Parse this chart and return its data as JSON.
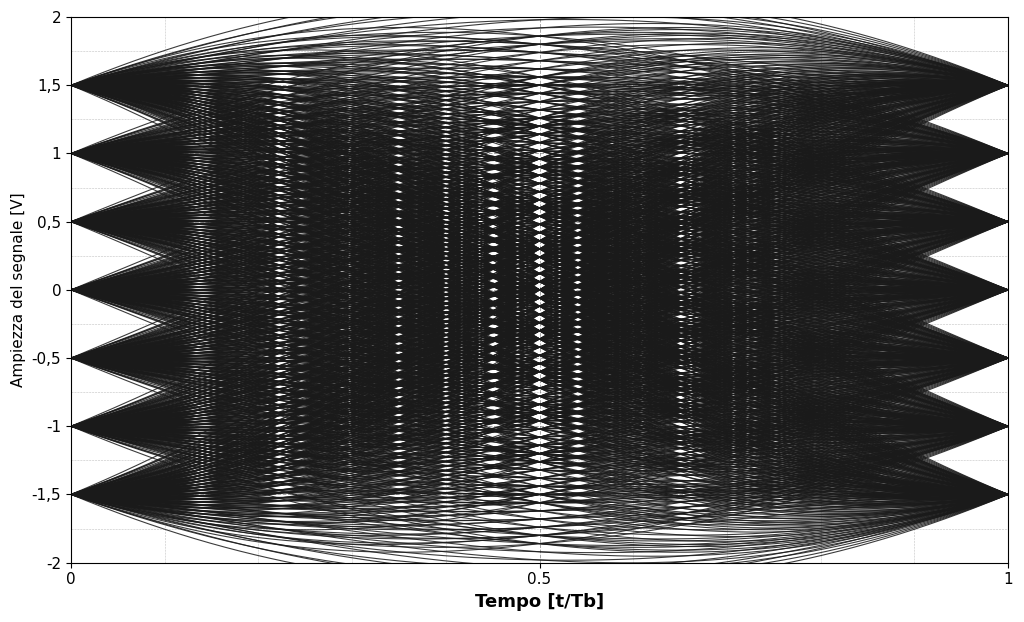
{
  "title": "",
  "xlabel": "Tempo [t/Tb]",
  "ylabel": "Ampiezza del segnale [V]",
  "xlim": [
    0,
    1
  ],
  "ylim": [
    -2,
    2
  ],
  "yticks": [
    -2,
    -1.5,
    -1,
    -0.5,
    0,
    0.5,
    1,
    1.5,
    2
  ],
  "xticks": [
    0,
    0.5,
    1
  ],
  "line_color": "#1a1a1a",
  "line_width": 0.8,
  "background_color": "#ffffff",
  "grid_color": "#000000",
  "grid_alpha": 0.35,
  "grid_linestyle": "--",
  "xlabel_fontsize": 13,
  "ylabel_fontsize": 11,
  "tick_fontsize": 11,
  "amplitude_levels": [
    -1.5,
    -1.0,
    -0.5,
    0.0,
    0.5,
    1.0,
    1.5
  ],
  "n_points": 500,
  "alpha": 0.85,
  "figsize": [
    10.24,
    6.22
  ],
  "dpi": 100
}
